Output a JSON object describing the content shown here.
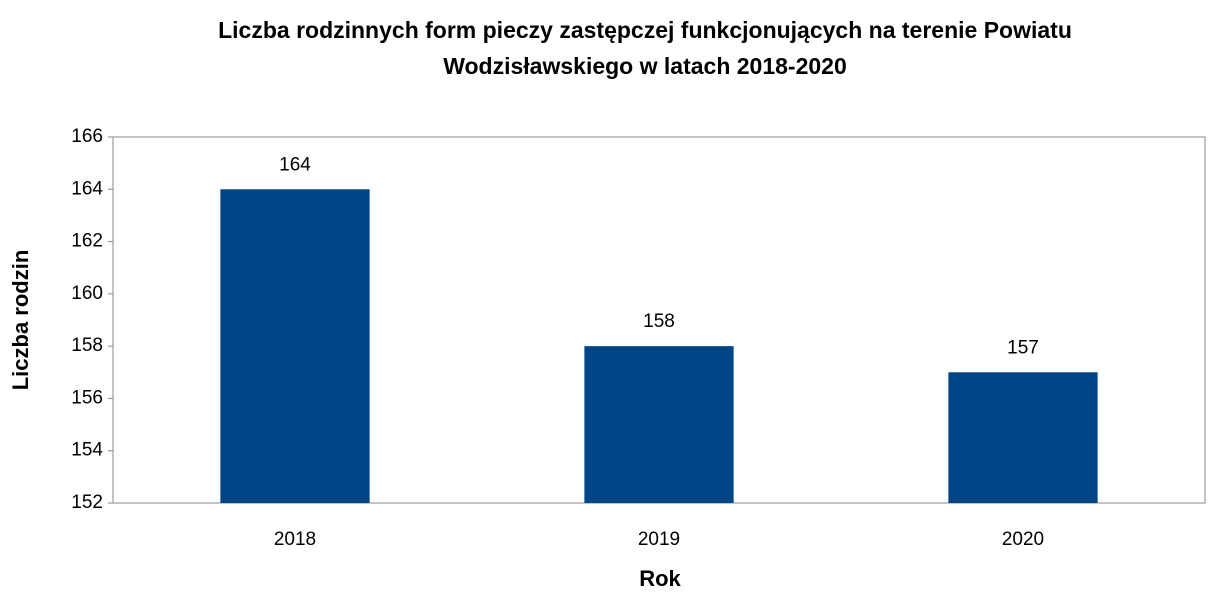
{
  "chart_data": {
    "type": "bar",
    "title": "Liczba rodzinnych form pieczy zastępczej funkcjonujących na terenie Powiatu Wodzisławskiego w latach 2018-2020",
    "xlabel": "Rok",
    "ylabel": "Liczba rodzin",
    "categories": [
      "2018",
      "2019",
      "2020"
    ],
    "values": [
      164,
      158,
      157
    ],
    "color": "#004586",
    "ylim": [
      152,
      166
    ],
    "yticks": [
      152,
      154,
      156,
      158,
      160,
      162,
      164,
      166
    ],
    "grid": false
  }
}
